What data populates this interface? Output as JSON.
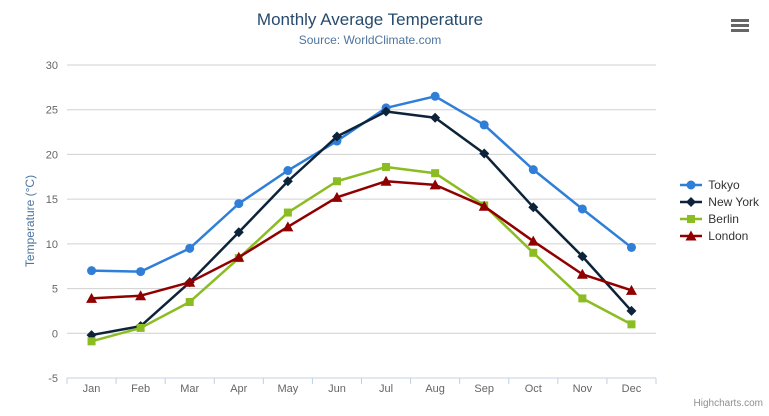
{
  "title": "Monthly Average Temperature",
  "subtitle": "Source: WorldClimate.com",
  "credits": "Highcharts.com",
  "colors": {
    "title": "#274b6d",
    "subtitle": "#4d759e",
    "axis_title": "#4d759e",
    "axis_labels": "#666666",
    "gridline": "#d0d0d0",
    "axis_line": "#c0d0e0",
    "legend_text": "#333333",
    "menu_icon": "#666666"
  },
  "chart_data": {
    "type": "line",
    "title": "Monthly Average Temperature",
    "subtitle": "Source: WorldClimate.com",
    "xlabel": "",
    "ylabel": "Temperature (°C)",
    "ylim": [
      -5,
      30
    ],
    "yticks": [
      -5,
      0,
      5,
      10,
      15,
      20,
      25,
      30
    ],
    "grid": true,
    "legend_position": "right",
    "categories": [
      "Jan",
      "Feb",
      "Mar",
      "Apr",
      "May",
      "Jun",
      "Jul",
      "Aug",
      "Sep",
      "Oct",
      "Nov",
      "Dec"
    ],
    "series": [
      {
        "name": "Tokyo",
        "color": "#2f7ed8",
        "marker": "circle",
        "values": [
          7.0,
          6.9,
          9.5,
          14.5,
          18.2,
          21.5,
          25.2,
          26.5,
          23.3,
          18.3,
          13.9,
          9.6
        ]
      },
      {
        "name": "New York",
        "color": "#0d233a",
        "marker": "diamond",
        "values": [
          -0.2,
          0.8,
          5.7,
          11.3,
          17.0,
          22.0,
          24.8,
          24.1,
          20.1,
          14.1,
          8.6,
          2.5
        ]
      },
      {
        "name": "Berlin",
        "color": "#8bbc21",
        "marker": "square",
        "values": [
          -0.9,
          0.6,
          3.5,
          8.4,
          13.5,
          17.0,
          18.6,
          17.9,
          14.3,
          9.0,
          3.9,
          1.0
        ]
      },
      {
        "name": "London",
        "color": "#910000",
        "marker": "triangle-up",
        "values": [
          3.9,
          4.2,
          5.7,
          8.5,
          11.9,
          15.2,
          17.0,
          16.6,
          14.2,
          10.3,
          6.6,
          4.8
        ]
      }
    ]
  }
}
